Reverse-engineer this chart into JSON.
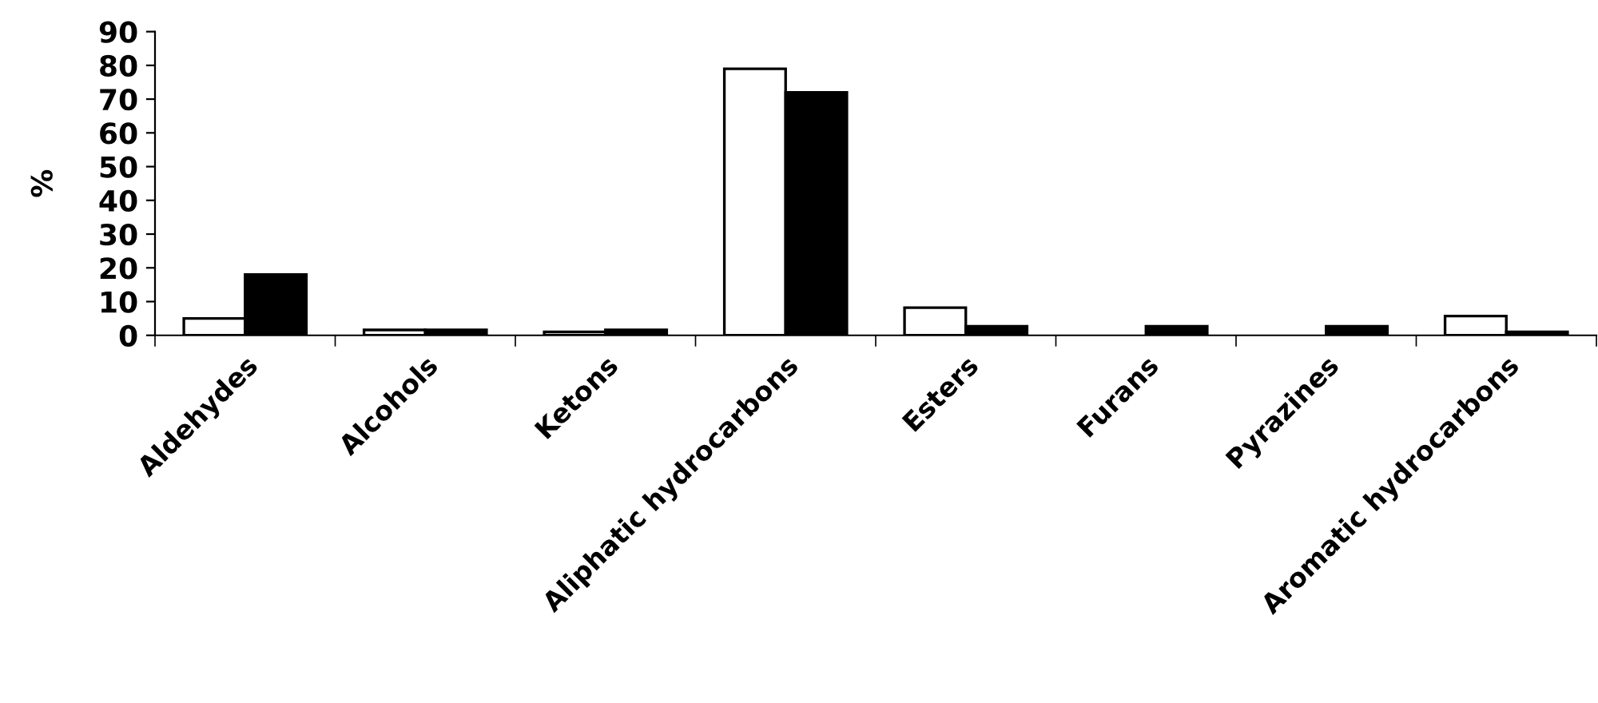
{
  "chart_data": {
    "type": "bar",
    "ylabel": "%",
    "categories": [
      "Aldehydes",
      "Alcohols",
      "Ketons",
      "Aliphatic hydrocarbons",
      "Esters",
      "Furans",
      "Pyrazines",
      "Aromatic hydrocarbons"
    ],
    "series": [
      {
        "color": "#ffffff",
        "values": [
          5,
          1.6,
          1,
          79,
          8.2,
          null,
          null,
          5.7
        ]
      },
      {
        "color": "#000000",
        "values": [
          18,
          1.6,
          1.6,
          72,
          2.7,
          2.7,
          2.7,
          1
        ]
      }
    ],
    "ylim": [
      0,
      90
    ],
    "yticks": [
      0,
      10,
      20,
      30,
      40,
      50,
      60,
      70,
      80,
      90
    ],
    "grid": false,
    "legend": false
  }
}
